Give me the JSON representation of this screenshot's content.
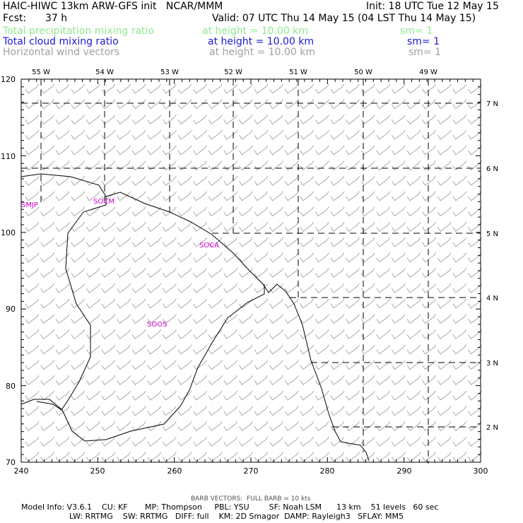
{
  "header": {
    "title": "HAIC-HIWC 13km ARW-GFS init   NCAR/MMM",
    "init": "Init: 18 UTC Tue 12 May 15",
    "fcst_label": "Fcst:",
    "fcst_value": "37 h",
    "valid": "Valid: 07 UTC Thu 14 May 15 (04 LST Thu 14 May 15)",
    "fields": [
      {
        "name": "Total precipitation mixing ratio",
        "height": "at height = 10.00 km",
        "sm": "sm= 1",
        "color": "#90e890"
      },
      {
        "name": "Total cloud mixing ratio",
        "height": "at height = 10.00 km",
        "sm": "sm= 1",
        "color": "#1a1ad0"
      },
      {
        "name": "Horizontal wind vectors",
        "height": "at height = 10.00 km",
        "sm": "sm= 1",
        "color": "#a0a0a0"
      }
    ]
  },
  "map": {
    "x_ticks": [
      "240",
      "250",
      "260",
      "270",
      "280",
      "290",
      "300"
    ],
    "y_ticks": [
      "70",
      "80",
      "90",
      "100",
      "110",
      "120"
    ],
    "lon_labels": [
      "55 W",
      "54 W",
      "53 W",
      "52 W",
      "51 W",
      "50 W",
      "49 W"
    ],
    "lat_labels": [
      "7 N",
      "6 N",
      "5 N",
      "4 N",
      "3 N",
      "2 N"
    ],
    "stations": [
      "SMJP",
      "SOCM",
      "SOCA",
      "SOOS"
    ],
    "line_color": "#000000",
    "station_color": "#cc00cc",
    "barb_color": "#a0a0a0",
    "barb_icon": "wind-barb-icon"
  },
  "footer": {
    "barb_note": "BARB VECTORS:  FULL BARB = 10 kts",
    "line1": "Model Info: V3.6.1    CU: KF       MP: Thompson     PBL: YSU        SF: Noah LSM      13 km    51 levels   60 sec",
    "line2": "LW: RRTMG    SW: RRTMG   DIFF: full    KM: 2D Smagor  DAMP: Rayleigh3   SFLAY: MM5"
  }
}
